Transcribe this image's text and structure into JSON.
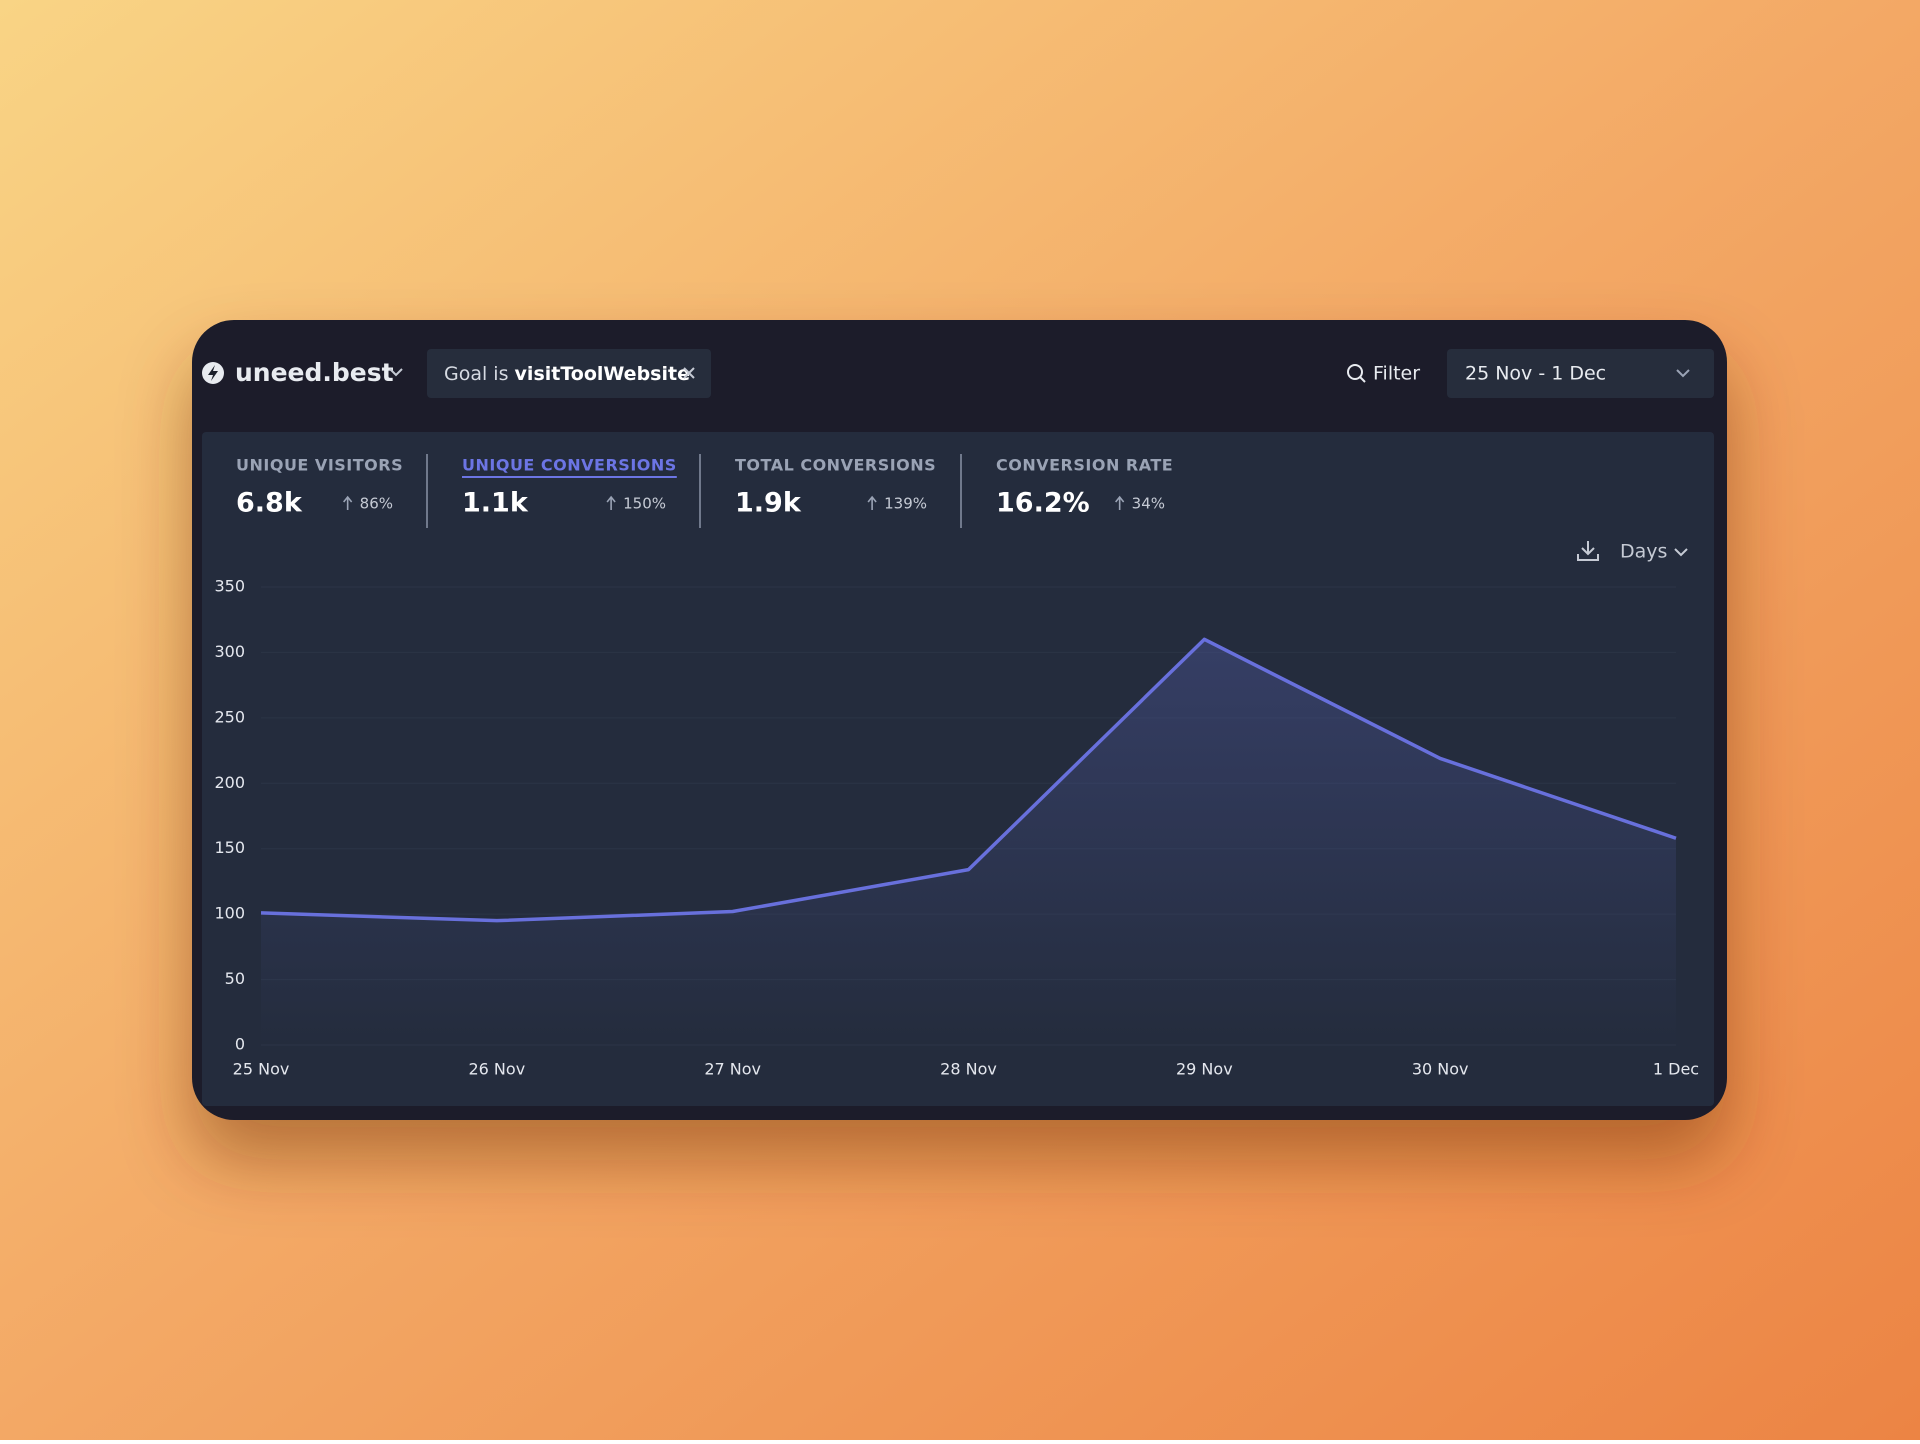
{
  "header": {
    "site": "uneed.best",
    "goal_prefix": "Goal is",
    "goal_name": "visitToolWebsite",
    "filter": "Filter",
    "date_range": "25 Nov - 1 Dec",
    "interval": "Days"
  },
  "metrics": [
    {
      "label": "UNIQUE VISITORS",
      "value": "6.8k",
      "change": "86%"
    },
    {
      "label": "UNIQUE CONVERSIONS",
      "value": "1.1k",
      "change": "150%"
    },
    {
      "label": "TOTAL CONVERSIONS",
      "value": "1.9k",
      "change": "139%"
    },
    {
      "label": "CONVERSION RATE",
      "value": "16.2%",
      "change": "34%"
    }
  ],
  "chart_data": {
    "type": "line",
    "categories": [
      "25 Nov",
      "26 Nov",
      "27 Nov",
      "28 Nov",
      "29 Nov",
      "30 Nov",
      "1 Dec"
    ],
    "values": [
      101,
      95,
      102,
      134,
      310,
      219,
      158
    ],
    "color": "#6870dc",
    "ylim": [
      0,
      350
    ],
    "yticks": [
      0,
      50,
      100,
      150,
      200,
      250,
      300,
      350
    ],
    "grid": true
  }
}
